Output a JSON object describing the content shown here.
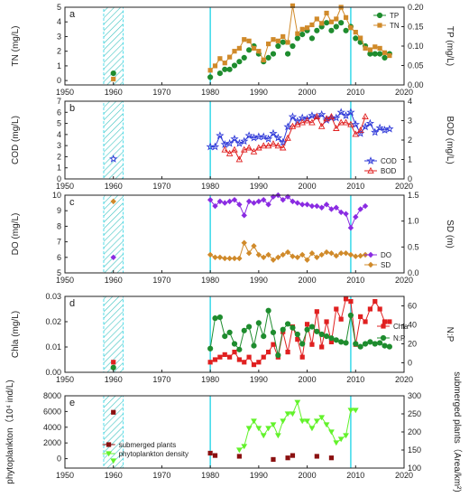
{
  "colors": {
    "green": "#1e8c2e",
    "orange": "#d08a2a",
    "blue": "#2f39d8",
    "red": "#e02020",
    "purple": "#8a2be2",
    "darkred": "#8b1010",
    "lime": "#62f22a",
    "cyan": "#2ad6e8",
    "hatch": "#3cc3c0"
  },
  "chart_data": [
    {
      "type": "line",
      "panel": "a",
      "xlabel": "",
      "xticks": [
        "1950",
        "1960",
        "1970",
        "1980",
        "1990",
        "2000",
        "2010",
        "2020"
      ],
      "xlim": [
        1950,
        2020
      ],
      "left": {
        "label": "TN (mg/L)",
        "ylim": [
          -0.3,
          5
        ],
        "ticks": [
          "0",
          "1",
          "2",
          "3",
          "4",
          "5"
        ]
      },
      "right": {
        "label": "TP (mg/L)",
        "ylim": [
          0,
          0.2
        ],
        "ticks": [
          "0.00",
          "0.05",
          "0.10",
          "0.15",
          "0.20"
        ]
      },
      "legend": "top-right",
      "series": [
        {
          "name": "TP",
          "axis": "right",
          "marker": "circle",
          "color": "green",
          "line": false,
          "x": [
            1960,
            1980,
            1982,
            1983,
            1984,
            1985,
            1986,
            1987,
            1988,
            1989,
            1990,
            1991,
            1992,
            1993,
            1994,
            1995,
            1996,
            1997,
            1998,
            1999,
            2000,
            2001,
            2002,
            2003,
            2004,
            2005,
            2006,
            2007,
            2008,
            2009,
            2010,
            2011,
            2012,
            2013,
            2014,
            2015,
            2016,
            2017
          ],
          "y": [
            0.03,
            0.02,
            0.03,
            0.04,
            0.04,
            0.05,
            0.06,
            0.07,
            0.09,
            0.1,
            0.08,
            0.06,
            0.07,
            0.08,
            0.1,
            0.11,
            0.08,
            0.1,
            0.12,
            0.13,
            0.14,
            0.12,
            0.14,
            0.15,
            0.16,
            0.14,
            0.15,
            0.16,
            0.14,
            0.15,
            0.12,
            0.11,
            0.1,
            0.08,
            0.08,
            0.08,
            0.07,
            0.08
          ]
        },
        {
          "name": "TN",
          "axis": "left",
          "marker": "square",
          "color": "orange",
          "line": true,
          "x": [
            1960,
            1980,
            1981,
            1982,
            1983,
            1984,
            1985,
            1986,
            1987,
            1988,
            1989,
            1990,
            1991,
            1992,
            1993,
            1994,
            1995,
            1996,
            1997,
            1998,
            1999,
            2000,
            2001,
            2002,
            2003,
            2004,
            2005,
            2006,
            2007,
            2008,
            2009,
            2010,
            2011,
            2012,
            2013,
            2014,
            2015,
            2016,
            2017
          ],
          "y": [
            0.1,
            0.7,
            1.0,
            1.5,
            1.2,
            1.6,
            2.0,
            2.2,
            2.8,
            2.7,
            2.2,
            2.0,
            1.4,
            2.5,
            2.8,
            2.7,
            3.0,
            2.6,
            5.1,
            3.2,
            3.5,
            3.6,
            3.8,
            4.2,
            3.9,
            4.6,
            4.0,
            4.2,
            5.0,
            4.3,
            3.6,
            3.3,
            2.9,
            2.2,
            2.1,
            2.3,
            2.2,
            1.9,
            1.7
          ]
        }
      ]
    },
    {
      "type": "line",
      "panel": "b",
      "xlabel": "",
      "xticks": [
        "1950",
        "1960",
        "1970",
        "1980",
        "1990",
        "2000",
        "2010",
        "2020"
      ],
      "xlim": [
        1950,
        2020
      ],
      "left": {
        "label": "COD (mg/L)",
        "ylim": [
          0,
          7
        ],
        "ticks": [
          "0",
          "1",
          "2",
          "3",
          "4",
          "5",
          "6",
          "7"
        ]
      },
      "right": {
        "label": "BOD (mg/L)",
        "ylim": [
          0,
          4
        ],
        "ticks": [
          "0",
          "1",
          "2",
          "3",
          "4"
        ]
      },
      "legend": "bottom-right",
      "series": [
        {
          "name": "COD",
          "axis": "left",
          "marker": "star",
          "color": "blue",
          "line": true,
          "x": [
            1960,
            1980,
            1981,
            1982,
            1983,
            1984,
            1985,
            1986,
            1987,
            1988,
            1989,
            1990,
            1991,
            1992,
            1993,
            1994,
            1995,
            1996,
            1997,
            1998,
            1999,
            2000,
            2001,
            2002,
            2003,
            2004,
            2005,
            2006,
            2007,
            2008,
            2009,
            2010,
            2011,
            2012,
            2013,
            2014,
            2015,
            2016,
            2017
          ],
          "y": [
            1.8,
            2.9,
            2.9,
            3.9,
            3.1,
            3.2,
            3.6,
            3.2,
            3.4,
            3.9,
            3.7,
            3.8,
            3.8,
            3.6,
            4.1,
            3.7,
            3.3,
            4.7,
            5.6,
            5.2,
            5.5,
            5.4,
            5.7,
            5.6,
            5.8,
            5.3,
            5.5,
            5.5,
            6.0,
            5.7,
            6.0,
            4.9,
            4.1,
            4.7,
            5.0,
            4.2,
            4.6,
            4.4,
            4.5
          ]
        },
        {
          "name": "BOD",
          "axis": "right",
          "marker": "triangle-open",
          "color": "red",
          "line": true,
          "x": [
            1983,
            1984,
            1985,
            1986,
            1987,
            1988,
            1989,
            1990,
            1991,
            1992,
            1993,
            1994,
            1995,
            1996,
            1997,
            1998,
            1999,
            2000,
            2001,
            2002,
            2003,
            2004,
            2005,
            2006,
            2007,
            2008,
            2009,
            2010,
            2011,
            2012
          ],
          "y": [
            1.5,
            1.3,
            1.5,
            1.0,
            1.5,
            1.6,
            1.4,
            1.6,
            1.7,
            1.7,
            1.8,
            1.7,
            1.6,
            2.1,
            2.7,
            2.8,
            2.9,
            3.0,
            2.9,
            3.2,
            2.7,
            3.1,
            3.2,
            2.6,
            2.9,
            2.9,
            2.8,
            2.3,
            2.5,
            3.2
          ]
        }
      ]
    },
    {
      "type": "line",
      "panel": "c",
      "xlabel": "",
      "xticks": [
        "1950",
        "1960",
        "1970",
        "1980",
        "1990",
        "2000",
        "2010",
        "2020"
      ],
      "xlim": [
        1950,
        2020
      ],
      "left": {
        "label": "DO (mg/L)",
        "ylim": [
          5,
          10
        ],
        "ticks": [
          "5",
          "6",
          "7",
          "8",
          "9",
          "10"
        ]
      },
      "right": {
        "label": "SD (m)",
        "ylim": [
          0,
          1.5
        ],
        "ticks": [
          "0.0",
          "0.5",
          "1.0",
          "1.5"
        ]
      },
      "legend": "bottom-right",
      "series": [
        {
          "name": "DO",
          "axis": "left",
          "marker": "diamond",
          "color": "purple",
          "line": true,
          "x": [
            1960,
            1980,
            1981,
            1982,
            1983,
            1984,
            1985,
            1986,
            1987,
            1988,
            1989,
            1990,
            1991,
            1992,
            1993,
            1994,
            1995,
            1996,
            1997,
            1998,
            1999,
            2000,
            2001,
            2002,
            2003,
            2004,
            2005,
            2006,
            2007,
            2008,
            2009,
            2010,
            2011,
            2012
          ],
          "y": [
            6.0,
            9.7,
            9.3,
            9.6,
            9.5,
            9.6,
            9.7,
            9.4,
            8.7,
            9.6,
            9.5,
            9.6,
            9.7,
            9.4,
            9.9,
            10.0,
            9.7,
            9.9,
            9.6,
            9.5,
            9.4,
            9.4,
            9.3,
            9.3,
            9.2,
            9.4,
            9.1,
            9.2,
            8.9,
            8.8,
            7.9,
            8.6,
            9.1,
            9.3
          ]
        },
        {
          "name": "SD",
          "axis": "right",
          "marker": "diamond",
          "color": "orange",
          "line": true,
          "x": [
            1960,
            1980,
            1981,
            1982,
            1983,
            1984,
            1985,
            1986,
            1987,
            1988,
            1989,
            1990,
            1991,
            1992,
            1993,
            1994,
            1995,
            1996,
            1997,
            1998,
            1999,
            2000,
            2001,
            2002,
            2003,
            2004,
            2005,
            2006,
            2007,
            2008,
            2009,
            2010,
            2011,
            2012
          ],
          "y": [
            1.38,
            0.35,
            0.3,
            0.3,
            0.28,
            0.28,
            0.28,
            0.28,
            0.58,
            0.38,
            0.52,
            0.35,
            0.3,
            0.35,
            0.25,
            0.3,
            0.35,
            0.4,
            0.32,
            0.3,
            0.35,
            0.25,
            0.38,
            0.3,
            0.35,
            0.4,
            0.38,
            0.33,
            0.38,
            0.38,
            0.35,
            0.32,
            0.33,
            0.35
          ]
        }
      ]
    },
    {
      "type": "line",
      "panel": "d",
      "xlabel": "",
      "xticks": [
        "1950",
        "1960",
        "1970",
        "1980",
        "1990",
        "2000",
        "2010",
        "2020"
      ],
      "xlim": [
        1950,
        2020
      ],
      "left": {
        "label": "Chla (mg/L)",
        "ylim": [
          0,
          0.03
        ],
        "ticks": [
          "0.00",
          "0.01",
          "0.02",
          "0.03"
        ]
      },
      "right": {
        "label": "N:P",
        "ylim": [
          -10,
          70
        ],
        "ticks": [
          "0",
          "20",
          "40",
          "60"
        ]
      },
      "legend": "right",
      "series": [
        {
          "name": "Chla",
          "axis": "left",
          "marker": "square",
          "color": "red",
          "line": true,
          "x": [
            1960,
            1980,
            1981,
            1982,
            1983,
            1984,
            1985,
            1986,
            1987,
            1988,
            1989,
            1990,
            1991,
            1992,
            1993,
            1994,
            1995,
            1996,
            1997,
            1998,
            1999,
            2000,
            2001,
            2002,
            2003,
            2004,
            2005,
            2006,
            2007,
            2008,
            2009,
            2010,
            2011,
            2012,
            2013,
            2014,
            2015,
            2016,
            2017
          ],
          "y": [
            0.004,
            0.004,
            0.005,
            0.006,
            0.007,
            0.006,
            0.008,
            0.005,
            0.004,
            0.006,
            0.003,
            0.004,
            0.006,
            0.008,
            0.011,
            0.006,
            0.016,
            0.008,
            0.018,
            0.013,
            0.006,
            0.019,
            0.011,
            0.024,
            0.01,
            0.02,
            0.012,
            0.025,
            0.021,
            0.029,
            0.028,
            0.011,
            0.022,
            0.02,
            0.025,
            0.028,
            0.025,
            0.02,
            0.02
          ]
        },
        {
          "name": "N:P",
          "axis": "right",
          "marker": "circle",
          "color": "green",
          "line": true,
          "x": [
            1960,
            1980,
            1981,
            1982,
            1983,
            1984,
            1985,
            1986,
            1987,
            1988,
            1989,
            1990,
            1991,
            1992,
            1993,
            1994,
            1995,
            1996,
            1997,
            1998,
            1999,
            2000,
            2001,
            2002,
            2003,
            2004,
            2005,
            2006,
            2007,
            2008,
            2009,
            2010,
            2011,
            2012,
            2013,
            2014,
            2015,
            2016,
            2017
          ],
          "y": [
            -5,
            15,
            47,
            48,
            28,
            32,
            20,
            14,
            34,
            38,
            18,
            42,
            28,
            55,
            32,
            8,
            35,
            41,
            37,
            30,
            20,
            35,
            38,
            33,
            30,
            28,
            26,
            24,
            22,
            21,
            50,
            20,
            17,
            20,
            22,
            20,
            21,
            18,
            17
          ]
        }
      ]
    },
    {
      "type": "scatter",
      "panel": "e",
      "xlabel": "",
      "xticks": [
        "1950",
        "1960",
        "1970",
        "1980",
        "1990",
        "2000",
        "2010",
        "2020"
      ],
      "xlim": [
        1950,
        2020
      ],
      "left": {
        "label": "phytoplankton（10⁴ ind/L)",
        "ylim": [
          -1200,
          8000
        ],
        "ticks": [
          "0",
          "2000",
          "4000",
          "6000",
          "8000"
        ]
      },
      "right": {
        "label": "submerged plants（Area/km²)",
        "ylim": [
          100,
          300
        ],
        "ticks": [
          "100",
          "150",
          "200",
          "250",
          "300"
        ]
      },
      "legend": "bottom-left",
      "series": [
        {
          "name": "submerged plants",
          "axis": "left",
          "marker": "square",
          "color": "darkred",
          "line": false,
          "x": [
            1960,
            1980,
            1981,
            1986,
            1993,
            1996,
            1997,
            2002,
            2005
          ],
          "y": [
            5900,
            700,
            400,
            300,
            -100,
            100,
            400,
            300,
            100
          ]
        },
        {
          "name": "phytoplankton density",
          "axis": "right",
          "marker": "triangle-down",
          "color": "lime",
          "line": true,
          "x": [
            1960,
            1986,
            1987,
            1988,
            1989,
            1990,
            1991,
            1992,
            1993,
            1994,
            1995,
            1996,
            1997,
            1998,
            1999,
            2000,
            2001,
            2002,
            2003,
            2004,
            2005,
            2006,
            2007,
            2008,
            2009,
            2010
          ],
          "y": [
            120,
            150,
            160,
            210,
            230,
            210,
            190,
            210,
            220,
            190,
            230,
            250,
            250,
            282,
            230,
            230,
            210,
            230,
            240,
            220,
            200,
            170,
            180,
            190,
            260,
            260
          ]
        }
      ]
    }
  ]
}
